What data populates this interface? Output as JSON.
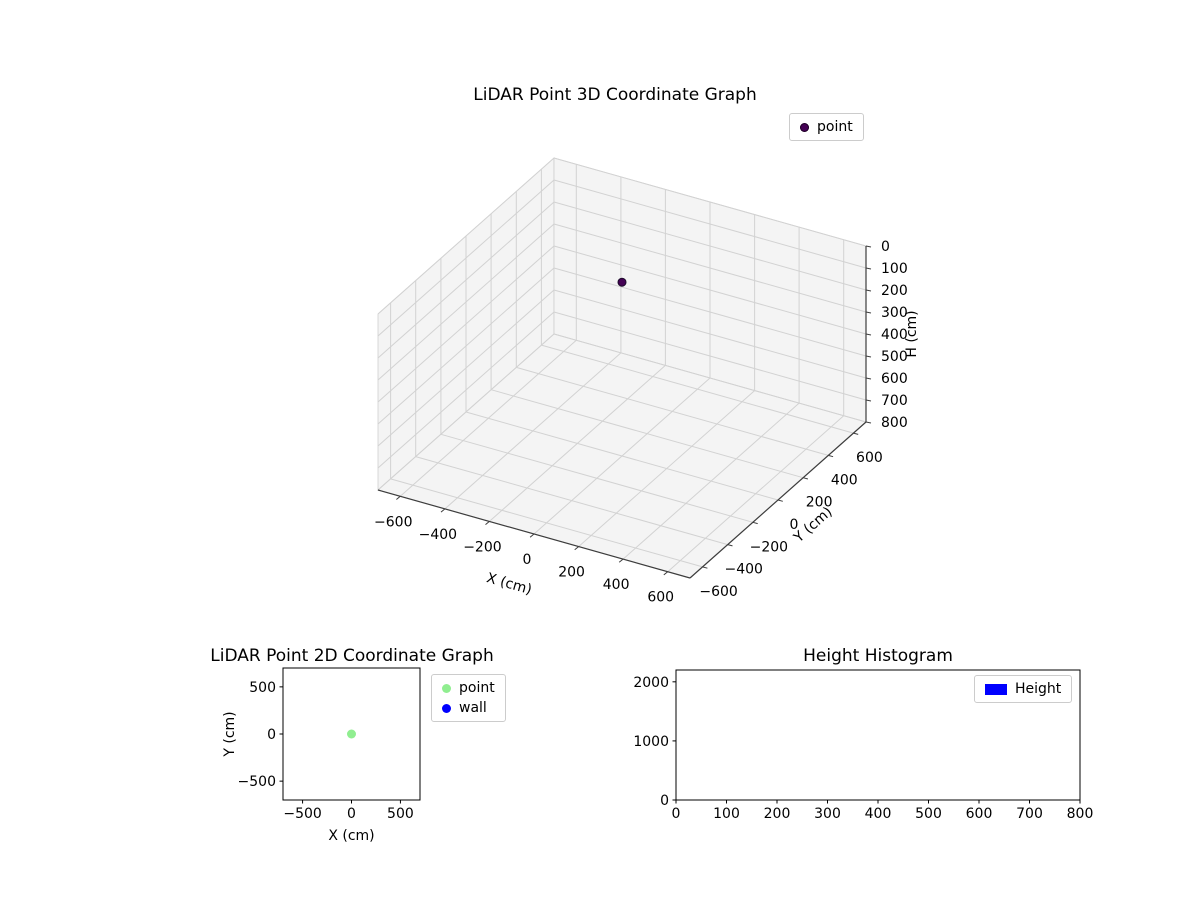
{
  "figure": {
    "background": "#ffffff"
  },
  "chart_data": [
    {
      "type": "scatter3d",
      "title": "LiDAR Point 3D Coordinate Graph",
      "xlabel": "X (cm)",
      "ylabel": "Y (cm)",
      "zlabel": "H (cm)",
      "xlim": [
        -700,
        700
      ],
      "ylim": [
        -700,
        700
      ],
      "zlim": [
        0,
        800
      ],
      "zaxis_inverted": true,
      "xticks": [
        -600,
        -400,
        -200,
        0,
        200,
        400,
        600
      ],
      "yticks": [
        -600,
        -400,
        -200,
        0,
        200,
        400,
        600
      ],
      "zticks": [
        0,
        100,
        200,
        300,
        400,
        500,
        600,
        700,
        800
      ],
      "grid": true,
      "legend": {
        "position": "upper right",
        "entries": [
          {
            "label": "point",
            "color": "#440154",
            "marker": "circle"
          }
        ]
      },
      "points": [
        {
          "x": 0,
          "y": 0,
          "h": 10,
          "color": "#440154"
        }
      ]
    },
    {
      "type": "scatter",
      "title": "LiDAR Point 2D Coordinate Graph",
      "xlabel": "X (cm)",
      "ylabel": "Y (cm)",
      "xlim": [
        -700,
        700
      ],
      "ylim": [
        -700,
        700
      ],
      "xticks": [
        -500,
        0,
        500
      ],
      "yticks": [
        -500,
        0,
        500
      ],
      "grid": false,
      "legend": {
        "position": "outside upper right",
        "entries": [
          {
            "label": "point",
            "color": "#90ee90",
            "marker": "circle"
          },
          {
            "label": "wall",
            "color": "#0000ff",
            "marker": "circle"
          }
        ]
      },
      "points": [
        {
          "x": 0,
          "y": 0,
          "series": "point",
          "color": "#90ee90"
        }
      ]
    },
    {
      "type": "histogram",
      "title": "Height Histogram",
      "xlabel": "",
      "ylabel": "",
      "xlim": [
        0,
        800
      ],
      "ylim": [
        0,
        2200
      ],
      "xticks": [
        0,
        100,
        200,
        300,
        400,
        500,
        600,
        700,
        800
      ],
      "yticks": [
        0,
        1000,
        2000
      ],
      "grid": false,
      "legend": {
        "position": "upper right",
        "entries": [
          {
            "label": "Height",
            "color": "#0000ff",
            "marker": "rect"
          }
        ]
      },
      "bar_color": "#0000ff",
      "bars": []
    }
  ]
}
